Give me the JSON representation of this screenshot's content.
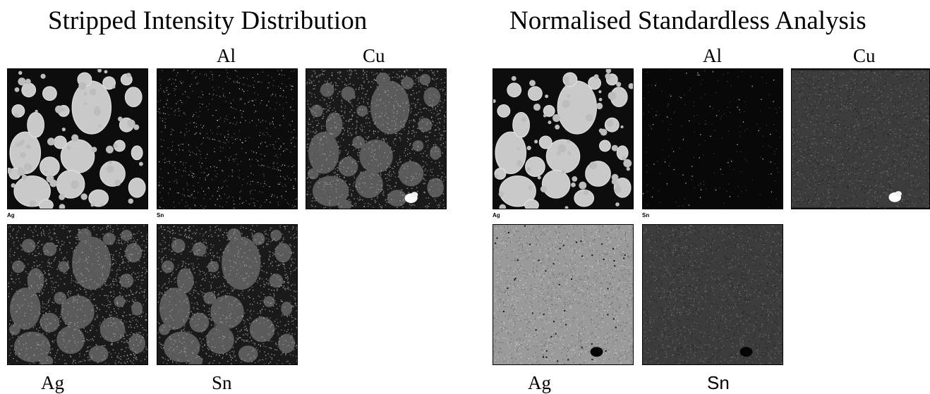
{
  "left_panel": {
    "title": "Stripped Intensity Distribution",
    "top_labels": [
      "Al",
      "Cu"
    ],
    "small_labels": [
      "Ag",
      "Sn"
    ],
    "bottom_labels": [
      "Ag",
      "Sn"
    ],
    "maps": [
      {
        "element": "",
        "style": "electron-image"
      },
      {
        "element": "Al",
        "style": "sparse-noise"
      },
      {
        "element": "Cu",
        "style": "grainy-particles"
      },
      {
        "element": "Ag",
        "style": "grainy-particles"
      },
      {
        "element": "Sn",
        "style": "grainy-particles"
      }
    ]
  },
  "right_panel": {
    "title": "Normalised Standardless Analysis",
    "top_labels": [
      "Al",
      "Cu"
    ],
    "small_labels": [
      "Ag",
      "Sn"
    ],
    "bottom_labels": [
      "Ag",
      "Sn"
    ],
    "maps": [
      {
        "element": "",
        "style": "electron-image"
      },
      {
        "element": "Al",
        "style": "dark-noise"
      },
      {
        "element": "Cu",
        "style": "mid-noise"
      },
      {
        "element": "Ag",
        "style": "light-noise"
      },
      {
        "element": "Sn",
        "style": "mid-noise"
      }
    ]
  },
  "colors": {
    "background": "#ffffff",
    "particle": "#c9c9c9",
    "matrix": "#101010",
    "hotspot": "#ffffff"
  }
}
